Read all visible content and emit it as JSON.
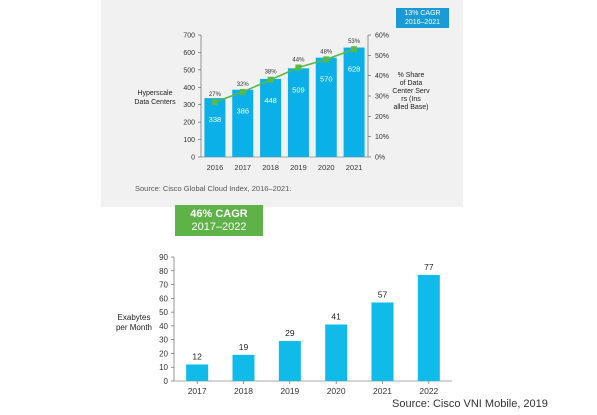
{
  "chart_data": [
    {
      "type": "bar",
      "ylabel": "Hyperscale Data Centers",
      "y2label": "% Share of Data Center Servers (Installed Base)",
      "categories": [
        "2016",
        "2017",
        "2018",
        "2019",
        "2020",
        "2021"
      ],
      "series": [
        {
          "values": [
            338,
            386,
            448,
            509,
            570,
            628
          ]
        },
        {
          "values": [
            27,
            32,
            38,
            44,
            48,
            53
          ]
        }
      ],
      "ylim": [
        0,
        700
      ],
      "yticks": [
        "0",
        "100",
        "200",
        "300",
        "400",
        "500",
        "600",
        "700"
      ],
      "y2lim": [
        0,
        60
      ],
      "y2ticks": [
        "0%",
        "10%",
        "20%",
        "30%",
        "40%",
        "50%",
        "60%"
      ],
      "pct_labels": [
        "27%",
        "32%",
        "38%",
        "44%",
        "48%",
        "53%"
      ],
      "badge": {
        "line1": "13% CAGR",
        "line2": "2016–2021"
      },
      "source": "Source: Cisco Global Cloud Index, 2016–2021.",
      "colors": {
        "bar": "#0bb0e8",
        "line": "#58b947",
        "badge": "#1a9bd7",
        "panel": "#f1f1f1"
      }
    },
    {
      "type": "bar",
      "ylabel": "Exabytes per Month",
      "categories": [
        "2017",
        "2018",
        "2019",
        "2020",
        "2021",
        "2022"
      ],
      "values": [
        12,
        19,
        29,
        41,
        57,
        77
      ],
      "ylim": [
        0,
        90
      ],
      "yticks": [
        "0",
        "10",
        "20",
        "30",
        "40",
        "50",
        "60",
        "70",
        "80",
        "90"
      ],
      "badge": {
        "line1": "46% CAGR",
        "line2": "2017–2022"
      },
      "source": "Source: Cisco VNI Mobile, 2019",
      "colors": {
        "bar": "#10bbea",
        "badge": "#5fb247"
      }
    }
  ]
}
